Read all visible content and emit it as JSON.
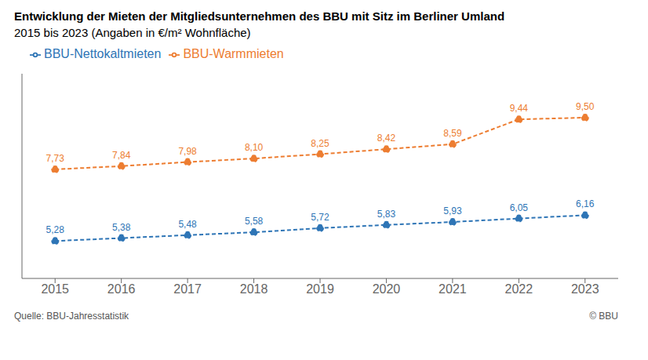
{
  "chart_data": {
    "type": "line",
    "title": "Entwicklung der Mieten der Mitgliedsunternehmen des BBU mit Sitz im Berliner Umland",
    "subtitle": "2015 bis 2023 (Angaben in €/m² Wohnfläche)",
    "x": [
      2015,
      2016,
      2017,
      2018,
      2019,
      2020,
      2021,
      2022,
      2023
    ],
    "series": [
      {
        "name": "BBU-Nettokaltmieten",
        "color": "#2E75B6",
        "marker": "circle",
        "line_style": "dashed",
        "values": [
          5.28,
          5.38,
          5.48,
          5.58,
          5.72,
          5.83,
          5.93,
          6.05,
          6.16
        ],
        "value_labels": [
          "5,28",
          "5,38",
          "5,48",
          "5,58",
          "5,72",
          "5,83",
          "5,93",
          "6,05",
          "6,16"
        ]
      },
      {
        "name": "BBU-Warmmieten",
        "color": "#ED7D31",
        "marker": "circle",
        "line_style": "dashed",
        "values": [
          7.73,
          7.84,
          7.98,
          8.1,
          8.25,
          8.42,
          8.59,
          9.44,
          9.5
        ],
        "value_labels": [
          "7,73",
          "7,84",
          "7,98",
          "8,10",
          "8,25",
          "8,42",
          "8,59",
          "9,44",
          "9,50"
        ]
      }
    ],
    "xlim": [
      2014.5,
      2023.5
    ],
    "xticks": [
      2015,
      2016,
      2017,
      2018,
      2019,
      2020,
      2021,
      2022,
      2023
    ],
    "ylim": [
      4.0,
      11.0
    ],
    "grid": false,
    "legend": "top",
    "data_labels": true,
    "tick_labels": "x",
    "annotations": [
      "Quelle: BBU-Jahresstatistik",
      "© BBU"
    ]
  }
}
